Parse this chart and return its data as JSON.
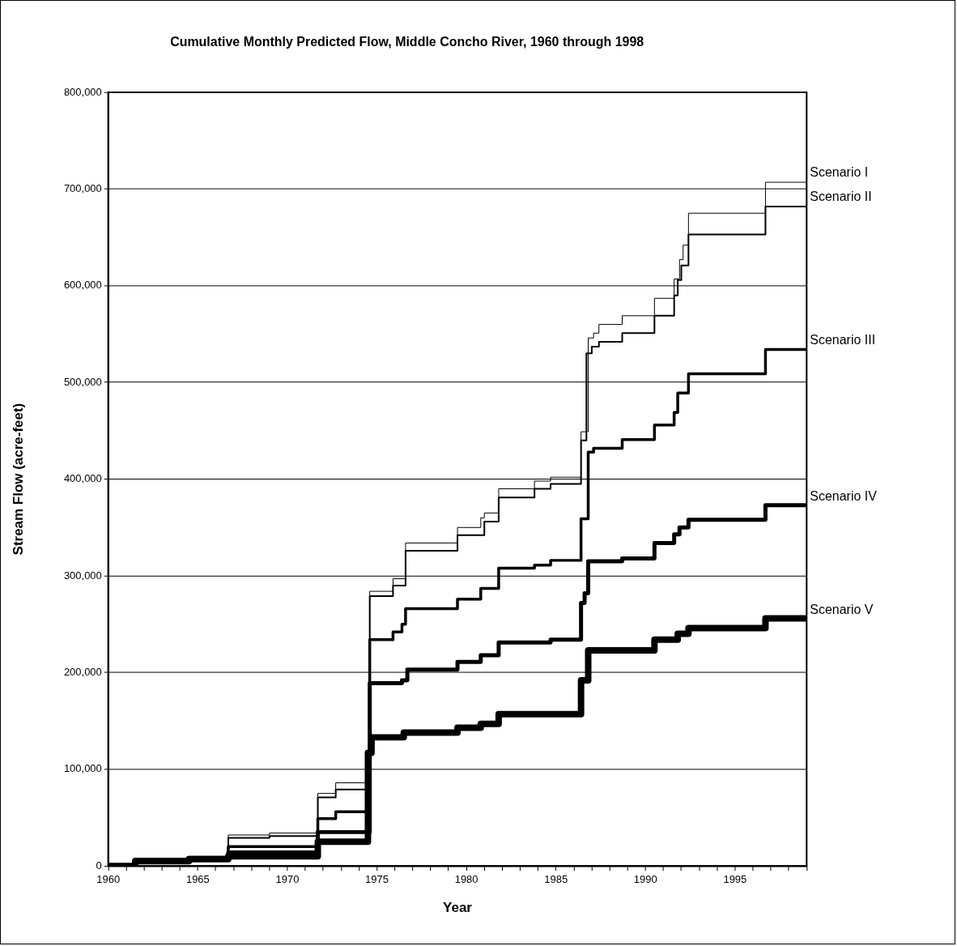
{
  "chart_data": {
    "type": "step",
    "title": "Cumulative Monthly Predicted Flow, Middle Concho River, 1960 through 1998",
    "xlabel": "Year",
    "ylabel": "Stream Flow (acre-feet)",
    "xlim": [
      1960,
      1999
    ],
    "xticks": [
      1960,
      {
        "value": 1961,
        "label": null
      },
      {
        "value": 1962,
        "label": null
      },
      {
        "value": 1963,
        "label": null
      },
      {
        "value": 1964,
        "label": null
      },
      1965,
      {
        "value": 1966,
        "label": null
      },
      {
        "value": 1967,
        "label": null
      },
      {
        "value": 1968,
        "label": null
      },
      {
        "value": 1969,
        "label": null
      },
      1970,
      {
        "value": 1971,
        "label": null
      },
      {
        "value": 1972,
        "label": null
      },
      {
        "value": 1973,
        "label": null
      },
      {
        "value": 1974,
        "label": null
      },
      1975,
      {
        "value": 1976,
        "label": null
      },
      {
        "value": 1977,
        "label": null
      },
      {
        "value": 1978,
        "label": null
      },
      {
        "value": 1979,
        "label": null
      },
      1980,
      {
        "value": 1981,
        "label": null
      },
      {
        "value": 1982,
        "label": null
      },
      {
        "value": 1983,
        "label": null
      },
      {
        "value": 1984,
        "label": null
      },
      1985,
      {
        "value": 1986,
        "label": null
      },
      {
        "value": 1987,
        "label": null
      },
      {
        "value": 1988,
        "label": null
      },
      {
        "value": 1989,
        "label": null
      },
      1990,
      {
        "value": 1991,
        "label": null
      },
      {
        "value": 1992,
        "label": null
      },
      {
        "value": 1993,
        "label": null
      },
      {
        "value": 1994,
        "label": null
      },
      1995,
      {
        "value": 1996,
        "label": null
      },
      {
        "value": 1997,
        "label": null
      },
      {
        "value": 1998,
        "label": null
      },
      {
        "value": 1999,
        "label": null
      }
    ],
    "ylim": [
      0,
      800000
    ],
    "yticks": [
      0,
      {
        "value": 100000,
        "label": "100,000"
      },
      {
        "value": 200000,
        "label": "200,000"
      },
      {
        "value": 300000,
        "label": "300,000"
      },
      {
        "value": 400000,
        "label": "400,000"
      },
      {
        "value": 500000,
        "label": "500,000"
      },
      {
        "value": 600000,
        "label": "600,000"
      },
      {
        "value": 700000,
        "label": "700,000"
      },
      {
        "value": 800000,
        "label": "800,000"
      }
    ],
    "grid": "y",
    "legend": false,
    "marker": "none",
    "line_style": "solid",
    "series": [
      {
        "name": "Scenario I",
        "color": "#000000",
        "x": [
          1960,
          1961.5,
          1964.5,
          1966.7,
          1969,
          1971.7,
          1972.7,
          1974.6,
          1975.9,
          1976.6,
          1979.5,
          1980.8,
          1981,
          1981.8,
          1983.8,
          1984.7,
          1986.4,
          1986.8,
          1987.1,
          1987.4,
          1988.7,
          1990.5,
          1991.6,
          1991.9,
          1992.1,
          1992.4,
          1996.7,
          1999
        ],
        "values": [
          0,
          7000,
          9000,
          32000,
          34000,
          75000,
          86000,
          284000,
          297000,
          334000,
          350000,
          360000,
          365000,
          390000,
          398000,
          402000,
          449000,
          546000,
          551000,
          560000,
          569000,
          587000,
          607000,
          627000,
          642000,
          675000,
          707000,
          708000
        ]
      },
      {
        "name": "Scenario II",
        "color": "#000000",
        "x": [
          1960,
          1961.5,
          1964.5,
          1966.7,
          1969,
          1971.7,
          1972.7,
          1974.6,
          1975.9,
          1976.6,
          1979.5,
          1981,
          1981.8,
          1983.8,
          1984.7,
          1986.4,
          1986.7,
          1987,
          1987.4,
          1988.7,
          1990.5,
          1991.6,
          1991.8,
          1992,
          1992.4,
          1996.7,
          1999
        ],
        "values": [
          0,
          7000,
          9000,
          29000,
          31000,
          71000,
          79000,
          279000,
          290000,
          326000,
          342000,
          356000,
          381000,
          390000,
          395000,
          440000,
          530000,
          537000,
          542000,
          551000,
          569000,
          590000,
          606000,
          621000,
          653000,
          682000,
          683000
        ]
      },
      {
        "name": "Scenario III",
        "color": "#000000",
        "x": [
          1960,
          1961.5,
          1964.5,
          1966.7,
          1971.7,
          1972.7,
          1974.6,
          1975.9,
          1976.4,
          1976.6,
          1979.5,
          1980.8,
          1981.8,
          1983.8,
          1984.7,
          1986.4,
          1986.8,
          1987.1,
          1988.7,
          1990.5,
          1991.6,
          1991.8,
          1992.4,
          1996.7,
          1999
        ],
        "values": [
          0,
          7000,
          9000,
          20000,
          49000,
          56000,
          234000,
          242000,
          250000,
          266000,
          276000,
          287000,
          308000,
          311000,
          316000,
          359000,
          428000,
          432000,
          441000,
          456000,
          469000,
          489000,
          509000,
          534000,
          535000
        ]
      },
      {
        "name": "Scenario IV",
        "color": "#000000",
        "x": [
          1960,
          1961.5,
          1964.5,
          1966.7,
          1971.7,
          1974.6,
          1976.4,
          1976.7,
          1979.5,
          1980.8,
          1981.8,
          1984.7,
          1986.4,
          1986.6,
          1986.8,
          1988.7,
          1990.5,
          1991.6,
          1991.9,
          1992.4,
          1996.7,
          1999
        ],
        "values": [
          0,
          6000,
          8000,
          14000,
          35000,
          189000,
          192000,
          203000,
          211000,
          218000,
          231000,
          234000,
          272000,
          282000,
          315000,
          318000,
          334000,
          343000,
          350000,
          358000,
          373000,
          373000
        ]
      },
      {
        "name": "Scenario V",
        "color": "#000000",
        "x": [
          1960,
          1961.5,
          1964.5,
          1966.7,
          1971.7,
          1974.5,
          1974.7,
          1976.5,
          1979.5,
          1980.8,
          1981.8,
          1986.4,
          1986.8,
          1990.5,
          1991.8,
          1992.4,
          1996.7,
          1999
        ],
        "values": [
          0,
          5000,
          7000,
          10000,
          25000,
          117000,
          133000,
          138000,
          143000,
          147000,
          157000,
          192000,
          223000,
          234000,
          240000,
          246000,
          256000,
          256000
        ]
      }
    ]
  }
}
